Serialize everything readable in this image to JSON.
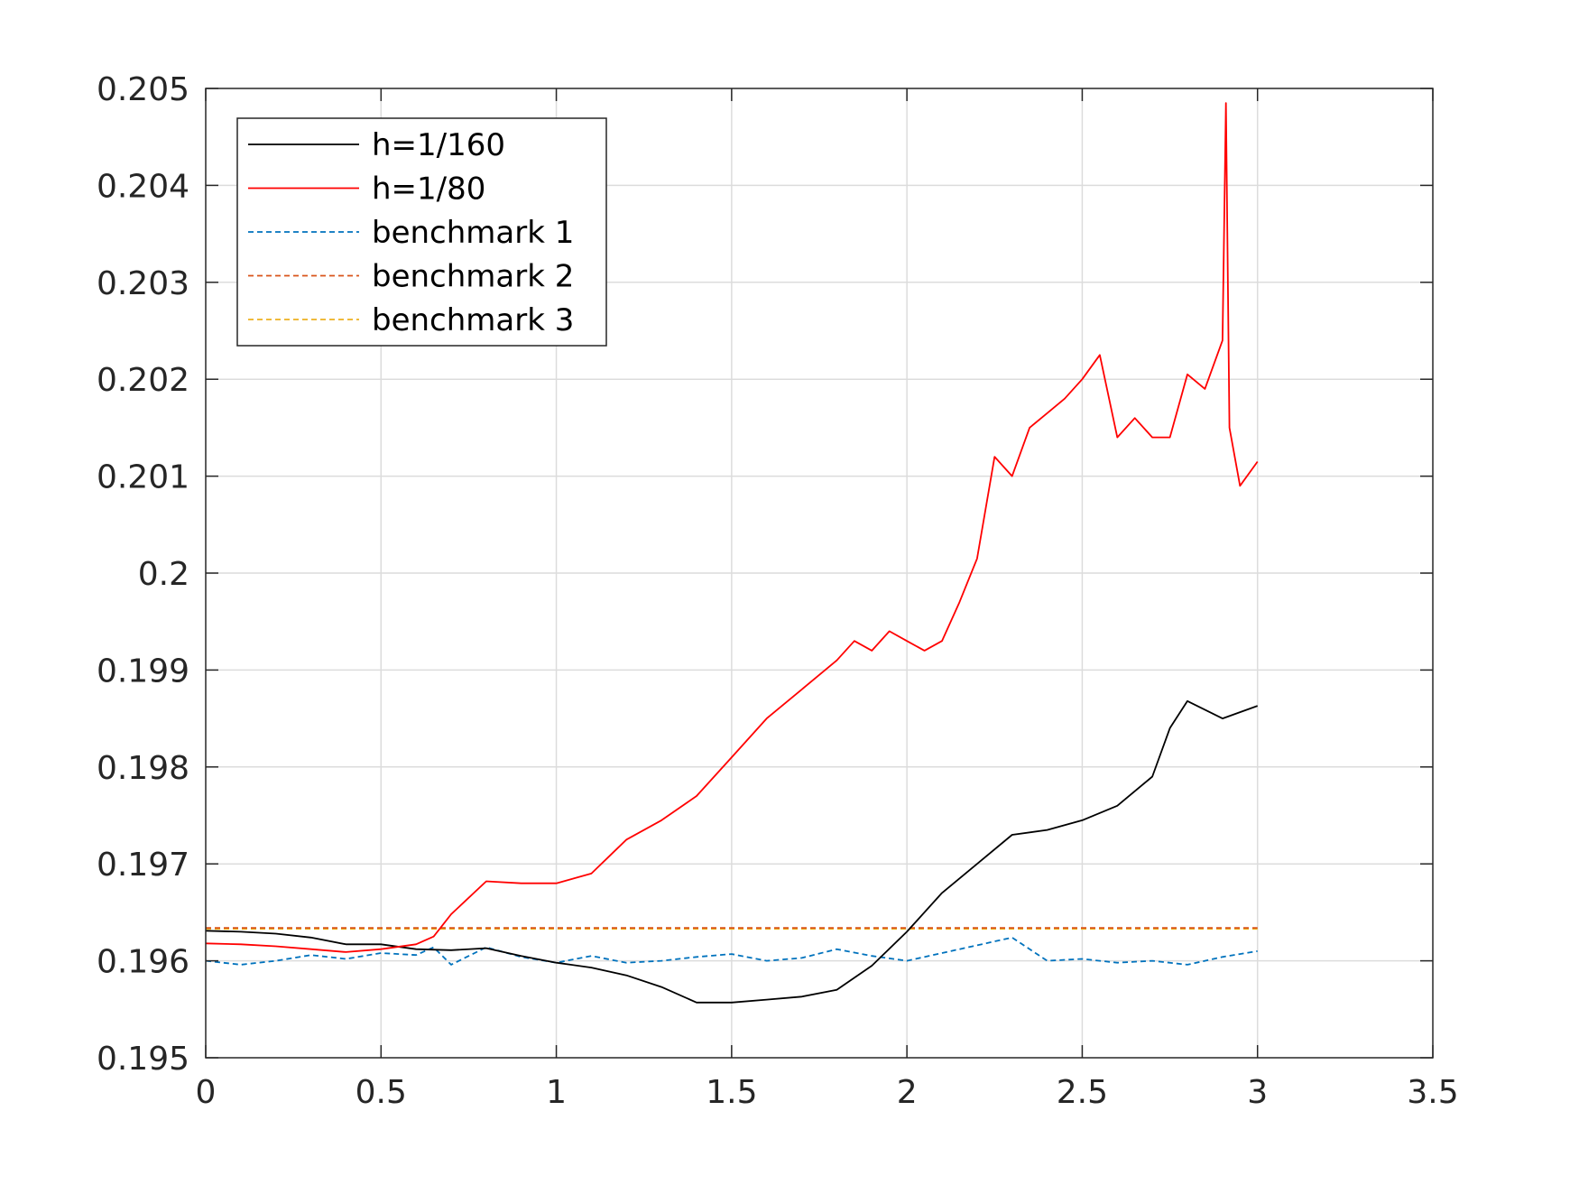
{
  "chart_data": {
    "type": "line",
    "xlim": [
      0,
      3.5
    ],
    "ylim": [
      0.195,
      0.205
    ],
    "x_ticks": [
      "0",
      "0.5",
      "1",
      "1.5",
      "2",
      "2.5",
      "3",
      "3.5"
    ],
    "y_ticks": [
      "0.195",
      "0.196",
      "0.197",
      "0.198",
      "0.199",
      "0.2",
      "0.201",
      "0.202",
      "0.203",
      "0.204",
      "0.205"
    ],
    "grid": true,
    "legend_position": "top-left",
    "series": [
      {
        "name": "h=1/160",
        "color": "#000000",
        "style": "solid",
        "x": [
          0,
          0.1,
          0.2,
          0.3,
          0.4,
          0.5,
          0.6,
          0.7,
          0.8,
          0.9,
          1.0,
          1.1,
          1.2,
          1.3,
          1.4,
          1.5,
          1.6,
          1.7,
          1.8,
          1.9,
          2.0,
          2.1,
          2.2,
          2.3,
          2.4,
          2.5,
          2.6,
          2.7,
          2.75,
          2.8,
          2.9,
          3.0
        ],
        "y": [
          0.19631,
          0.1963,
          0.19628,
          0.19624,
          0.19617,
          0.19617,
          0.19612,
          0.19611,
          0.19613,
          0.19605,
          0.19598,
          0.19593,
          0.19585,
          0.19573,
          0.19557,
          0.19557,
          0.1956,
          0.19563,
          0.1957,
          0.19595,
          0.1963,
          0.1967,
          0.197,
          0.1973,
          0.19735,
          0.19745,
          0.1976,
          0.1979,
          0.1984,
          0.19868,
          0.1985,
          0.19863
        ]
      },
      {
        "name": "h=1/80",
        "color": "#ff0000",
        "style": "solid",
        "x": [
          0,
          0.1,
          0.2,
          0.3,
          0.4,
          0.5,
          0.6,
          0.65,
          0.7,
          0.8,
          0.9,
          1.0,
          1.1,
          1.2,
          1.3,
          1.4,
          1.5,
          1.6,
          1.7,
          1.8,
          1.85,
          1.9,
          1.95,
          2.0,
          2.05,
          2.1,
          2.15,
          2.2,
          2.25,
          2.3,
          2.35,
          2.4,
          2.45,
          2.5,
          2.55,
          2.6,
          2.65,
          2.7,
          2.75,
          2.8,
          2.85,
          2.9,
          2.91,
          2.92,
          2.95,
          3.0
        ],
        "y": [
          0.19618,
          0.19617,
          0.19615,
          0.19612,
          0.19609,
          0.19612,
          0.19617,
          0.19625,
          0.19648,
          0.19682,
          0.1968,
          0.1968,
          0.1969,
          0.19725,
          0.19745,
          0.1977,
          0.1981,
          0.1985,
          0.1988,
          0.1991,
          0.1993,
          0.1992,
          0.1994,
          0.1993,
          0.1992,
          0.1993,
          0.1997,
          0.20015,
          0.2012,
          0.201,
          0.2015,
          0.20165,
          0.2018,
          0.202,
          0.20225,
          0.2014,
          0.2016,
          0.2014,
          0.2014,
          0.20205,
          0.2019,
          0.2024,
          0.20485,
          0.2015,
          0.2009,
          0.20115
        ]
      },
      {
        "name": "benchmark 1",
        "color": "#0072bd",
        "style": "dashed",
        "x": [
          0,
          0.1,
          0.2,
          0.3,
          0.4,
          0.5,
          0.6,
          0.65,
          0.7,
          0.8,
          0.9,
          1.0,
          1.1,
          1.2,
          1.3,
          1.4,
          1.5,
          1.6,
          1.7,
          1.8,
          1.9,
          2.0,
          2.1,
          2.2,
          2.3,
          2.4,
          2.5,
          2.6,
          2.7,
          2.8,
          2.9,
          3.0
        ],
        "y": [
          0.196,
          0.19596,
          0.196,
          0.19606,
          0.19602,
          0.19608,
          0.19606,
          0.19614,
          0.19596,
          0.19614,
          0.19604,
          0.19598,
          0.19605,
          0.19598,
          0.196,
          0.19604,
          0.19607,
          0.196,
          0.19603,
          0.19612,
          0.19605,
          0.196,
          0.19608,
          0.19616,
          0.19624,
          0.196,
          0.19602,
          0.19598,
          0.196,
          0.19596,
          0.19604,
          0.1961
        ]
      },
      {
        "name": "benchmark 2",
        "color": "#d95319",
        "style": "dashed",
        "x": [
          0,
          3.0
        ],
        "y": [
          0.19634,
          0.19634
        ]
      },
      {
        "name": "benchmark 3",
        "color": "#edb120",
        "style": "dashed",
        "x": [
          0,
          3.0
        ],
        "y": [
          0.19633,
          0.19633
        ]
      }
    ]
  }
}
